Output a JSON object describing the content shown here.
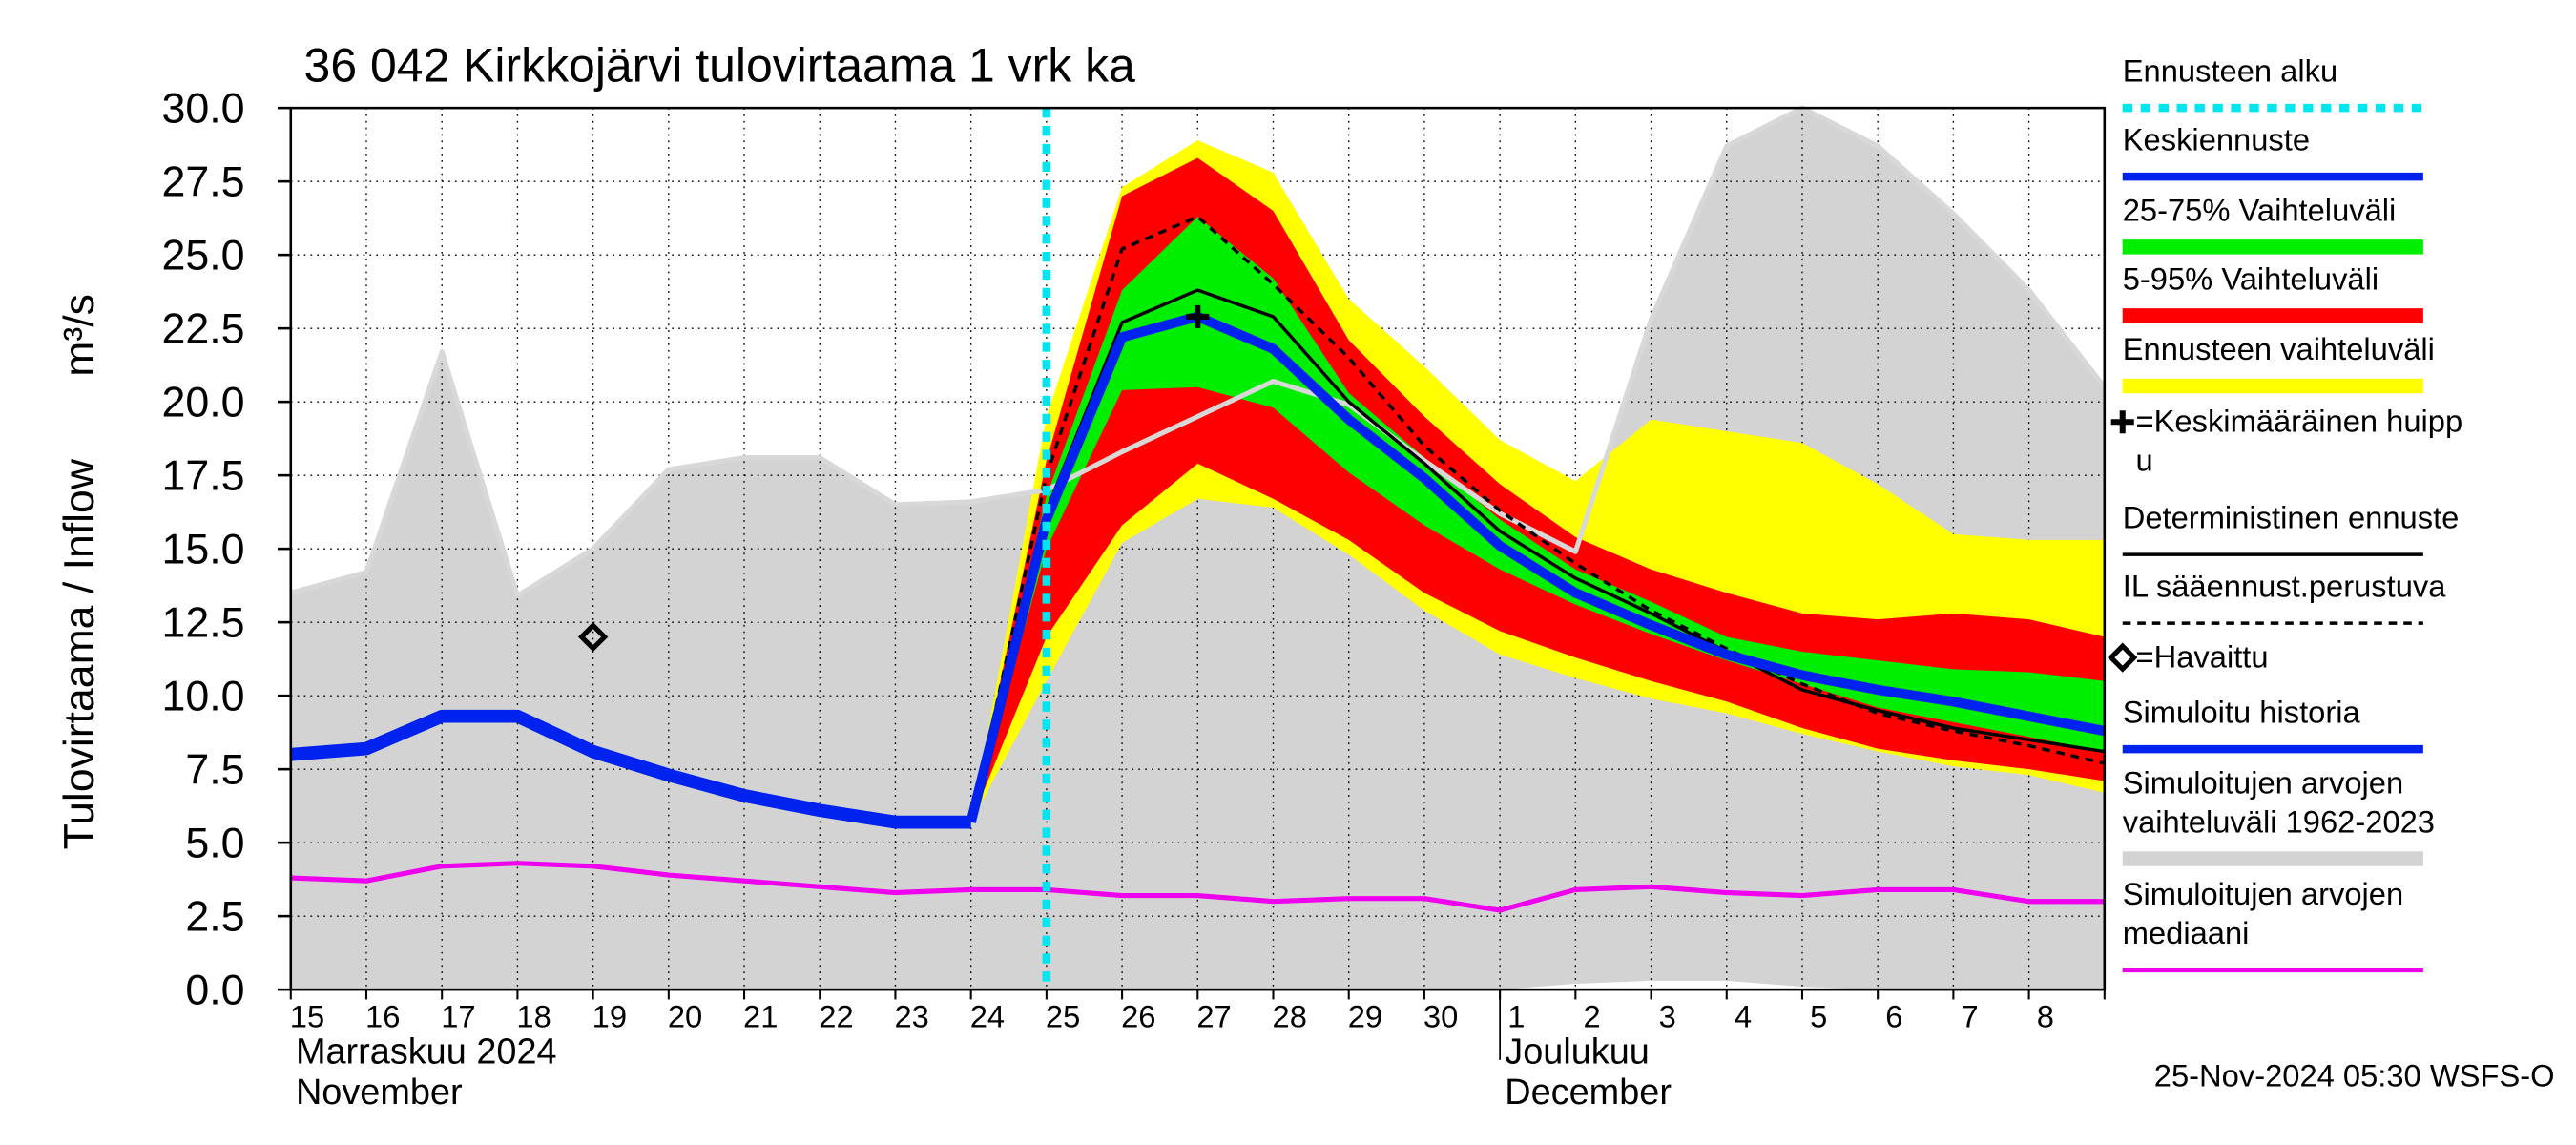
{
  "chart_data": {
    "type": "hydro-forecast",
    "title": "36 042 Kirkkojärvi tulovirtaama 1 vrk ka",
    "y_title": "Tulovirtaama / Inflow",
    "y_unit": "m³/s",
    "footer": "25-Nov-2024 05:30 WSFS-O",
    "categories": [
      "15",
      "16",
      "17",
      "18",
      "19",
      "20",
      "21",
      "22",
      "23",
      "24",
      "25",
      "26",
      "27",
      "28",
      "29",
      "30",
      "1",
      "2",
      "3",
      "4",
      "5",
      "6",
      "7",
      "8",
      null
    ],
    "months": [
      {
        "lines": [
          "Marraskuu 2024",
          "November"
        ],
        "at": 0
      },
      {
        "lines": [
          "Joulukuu",
          "December"
        ],
        "at": 16
      }
    ],
    "ylim": [
      0,
      30
    ],
    "yticks": [
      {
        "value": 0,
        "label": "0.0"
      },
      2.5,
      {
        "value": 5,
        "label": "5.0"
      },
      7.5,
      {
        "value": 10,
        "label": "10.0"
      },
      12.5,
      {
        "value": 15,
        "label": "15.0"
      },
      17.5,
      {
        "value": 20,
        "label": "20.0"
      },
      22.5,
      {
        "value": 25,
        "label": "25.0"
      },
      27.5,
      {
        "value": 30,
        "label": "30.0"
      }
    ],
    "grid": true,
    "series": [
      {
        "name": "Ennusteen alku",
        "kind": "vline",
        "color": "#00e5ee",
        "width": 5,
        "x": 10
      },
      {
        "name": "Keskiennuste",
        "kind": "line",
        "color": "#0022ee",
        "width": 6,
        "values": [
          null,
          null,
          null,
          null,
          null,
          null,
          null,
          null,
          null,
          5.7,
          16.0,
          22.2,
          22.9,
          21.8,
          19.4,
          17.4,
          15.1,
          13.5,
          12.4,
          11.4,
          10.7,
          10.2,
          9.8,
          9.3,
          8.8
        ]
      },
      {
        "name": "25-75% Vaihteluväli",
        "kind": "band",
        "color": "#00ee00",
        "width": 9,
        "low": [
          null,
          null,
          null,
          null,
          null,
          null,
          null,
          null,
          null,
          5.7,
          15.0,
          20.4,
          20.5,
          19.8,
          17.6,
          15.8,
          14.3,
          13.1,
          12.1,
          11.2,
          10.4,
          9.6,
          9.1,
          8.6,
          8.1
        ],
        "high": [
          null,
          null,
          null,
          null,
          null,
          null,
          null,
          null,
          null,
          5.7,
          16.8,
          23.8,
          26.3,
          24.2,
          20.3,
          18.1,
          16.0,
          14.3,
          13.2,
          12.0,
          11.5,
          11.2,
          10.9,
          10.8,
          10.5
        ]
      },
      {
        "name": "5-95% Vaihteluväli",
        "kind": "band",
        "color": "#ff0000",
        "width": 9,
        "low": [
          null,
          null,
          null,
          null,
          null,
          null,
          null,
          null,
          null,
          5.7,
          12.0,
          15.8,
          17.9,
          16.7,
          15.3,
          13.5,
          12.2,
          11.3,
          10.5,
          9.8,
          8.9,
          8.2,
          7.8,
          7.5,
          7.1
        ],
        "high": [
          null,
          null,
          null,
          null,
          null,
          null,
          null,
          null,
          null,
          5.7,
          18.0,
          27.0,
          28.3,
          26.5,
          22.1,
          19.5,
          17.2,
          15.4,
          14.3,
          13.5,
          12.8,
          12.6,
          12.8,
          12.6,
          12.0
        ]
      },
      {
        "name": "Ennusteen vaihteluväli",
        "kind": "band",
        "color": "#ffff00",
        "width": 9,
        "low": [
          null,
          null,
          null,
          null,
          null,
          null,
          null,
          null,
          null,
          5.7,
          10.5,
          15.2,
          16.7,
          16.4,
          14.8,
          12.9,
          11.4,
          10.6,
          9.9,
          9.4,
          8.7,
          8.1,
          7.6,
          7.3,
          6.7
        ],
        "high": [
          null,
          null,
          null,
          null,
          null,
          null,
          null,
          null,
          null,
          5.7,
          19.5,
          27.3,
          28.9,
          27.8,
          23.5,
          21.2,
          18.7,
          17.3,
          19.4,
          19.0,
          18.6,
          17.2,
          15.5,
          15.3,
          15.3
        ]
      },
      {
        "name": [
          "=Keskimääräinen huipp",
          "u"
        ],
        "kind": "marker",
        "symbol": "plus",
        "color": "#000000",
        "x": 12,
        "value": 22.9
      },
      {
        "name": "Deterministinen ennuste",
        "kind": "line",
        "color": "#000000",
        "width": 2,
        "values": [
          null,
          null,
          null,
          null,
          null,
          null,
          null,
          null,
          null,
          5.7,
          16.3,
          22.7,
          23.8,
          22.9,
          20.0,
          17.9,
          15.6,
          14.0,
          12.8,
          11.5,
          10.2,
          9.5,
          8.9,
          8.5,
          8.1
        ]
      },
      {
        "name": "IL sääennust.perustuva",
        "kind": "line",
        "dash": true,
        "color": "#000000",
        "width": 2,
        "values": [
          null,
          null,
          null,
          null,
          null,
          null,
          null,
          null,
          null,
          5.7,
          17.5,
          25.2,
          26.3,
          24.0,
          21.5,
          18.5,
          16.3,
          14.5,
          12.9,
          11.6,
          10.4,
          9.4,
          8.8,
          8.3,
          7.7
        ]
      },
      {
        "name": "=Havaittu",
        "kind": "marker",
        "symbol": "diamond",
        "color": "#000000",
        "x": 4,
        "value": 12.0
      },
      {
        "name": "Simuloitu historia",
        "kind": "line",
        "color": "#0022ee",
        "width": 8,
        "values": [
          8.0,
          8.2,
          9.3,
          9.3,
          8.1,
          7.3,
          6.6,
          6.1,
          5.7,
          5.7,
          null,
          null,
          null,
          null,
          null,
          null,
          null,
          null,
          null,
          null,
          null,
          null,
          null,
          null,
          null
        ]
      },
      {
        "name": [
          "Simuloitujen arvojen",
          "vaihteluväli 1962-2023"
        ],
        "kind": "band",
        "color": "#d3d3d3",
        "width": 9,
        "low": [
          0,
          0,
          0,
          0,
          0,
          0,
          0,
          0,
          0,
          0,
          0,
          0,
          0,
          0,
          0,
          0,
          0,
          0.2,
          0.3,
          0.3,
          0.1,
          0,
          0,
          0,
          0
        ],
        "high": [
          13.5,
          14.2,
          21.7,
          13.4,
          15.0,
          17.7,
          18.1,
          18.1,
          16.5,
          16.6,
          17.0,
          18.3,
          19.5,
          20.7,
          19.9,
          18.0,
          16.2,
          14.9,
          22.8,
          28.7,
          30.0,
          28.7,
          26.4,
          23.8,
          20.5
        ]
      },
      {
        "name": [
          "Simuloitujen arvojen",
          "mediaani"
        ],
        "kind": "line",
        "color": "#ee00ee",
        "width": 3,
        "values": [
          3.8,
          3.7,
          4.2,
          4.3,
          4.2,
          3.9,
          3.7,
          3.5,
          3.3,
          3.4,
          3.4,
          3.2,
          3.2,
          3.0,
          3.1,
          3.1,
          2.7,
          3.4,
          3.5,
          3.3,
          3.2,
          3.4,
          3.4,
          3.0,
          3.0
        ]
      }
    ]
  }
}
